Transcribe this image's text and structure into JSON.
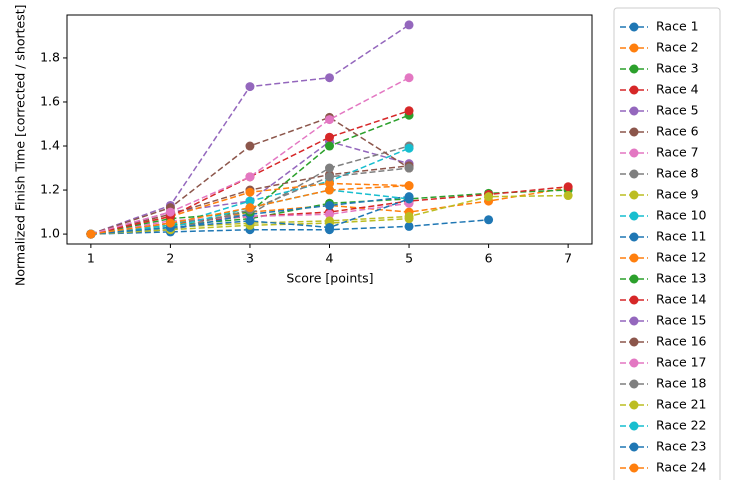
{
  "chart_data": {
    "type": "line",
    "x_label": "Score [points]",
    "y_label": "Normalized Finish Time [corrected / shortest]",
    "x": [
      1,
      2,
      3,
      4,
      5,
      6,
      7
    ],
    "xlim": [
      0.7,
      7.3
    ],
    "xticks": [
      1,
      2,
      3,
      4,
      5,
      6,
      7
    ],
    "ylim": [
      0.955,
      1.995
    ],
    "yticks": [
      {
        "value": 1,
        "label": "1.0"
      },
      1.2,
      1.4,
      1.6,
      1.8
    ],
    "line_style": "dashed",
    "marker": "circle",
    "legend": "outside-right",
    "series": [
      {
        "name": "Race 1",
        "color": "#1f77b4",
        "values": [
          1,
          1.01,
          1.02,
          1.02,
          1.035,
          1.065,
          null
        ]
      },
      {
        "name": "Race 2",
        "color": "#ff7f0e",
        "values": [
          1,
          1.04,
          1.1,
          1.13,
          1.1,
          1.15,
          1.21
        ]
      },
      {
        "name": "Race 3",
        "color": "#2ca02c",
        "values": [
          1,
          1.04,
          1.07,
          1.14,
          1.16,
          1.185,
          1.2
        ]
      },
      {
        "name": "Race 4",
        "color": "#d62728",
        "values": [
          1,
          1.05,
          1.08,
          1.1,
          1.15,
          1.18,
          1.215
        ]
      },
      {
        "name": "Race 5",
        "color": "#9467bd",
        "values": [
          1,
          1.1,
          1.15,
          1.42,
          1.32,
          null,
          null
        ]
      },
      {
        "name": "Race 6",
        "color": "#8c564b",
        "values": [
          1,
          1.09,
          1.2,
          1.27,
          1.31,
          null,
          null
        ]
      },
      {
        "name": "Race 7",
        "color": "#e377c2",
        "values": [
          1,
          1.06,
          1.08,
          1.09,
          1.14,
          null,
          null
        ]
      },
      {
        "name": "Race 8",
        "color": "#7f7f7f",
        "values": [
          1,
          1.05,
          1.09,
          1.3,
          1.4,
          null,
          null
        ]
      },
      {
        "name": "Race 9",
        "color": "#bcbd22",
        "values": [
          1,
          1.03,
          1.05,
          1.06,
          1.08,
          1.17,
          1.175
        ]
      },
      {
        "name": "Race 10",
        "color": "#17becf",
        "values": [
          1,
          1.04,
          1.15,
          1.24,
          1.39,
          null,
          null
        ]
      },
      {
        "name": "Race 11",
        "color": "#1f77b4",
        "values": [
          1,
          1.02,
          1.09,
          1.13,
          1.17,
          null,
          null
        ]
      },
      {
        "name": "Race 12",
        "color": "#ff7f0e",
        "values": [
          1,
          1.08,
          1.19,
          1.23,
          1.22,
          null,
          null
        ]
      },
      {
        "name": "Race 13",
        "color": "#2ca02c",
        "values": [
          1,
          1.07,
          1.1,
          1.4,
          1.54,
          null,
          null
        ]
      },
      {
        "name": "Race 14",
        "color": "#d62728",
        "values": [
          1,
          1.08,
          1.26,
          1.44,
          1.56,
          null,
          null
        ]
      },
      {
        "name": "Race 15",
        "color": "#9467bd",
        "values": [
          1,
          1.13,
          1.67,
          1.71,
          1.95,
          null,
          null
        ]
      },
      {
        "name": "Race 16",
        "color": "#8c564b",
        "values": [
          1,
          1.12,
          1.4,
          1.53,
          1.3,
          null,
          null
        ]
      },
      {
        "name": "Race 17",
        "color": "#e377c2",
        "values": [
          1,
          1.1,
          1.26,
          1.52,
          1.71,
          null,
          null
        ]
      },
      {
        "name": "Race 18",
        "color": "#7f7f7f",
        "values": [
          1,
          1.02,
          1.11,
          1.26,
          1.3,
          null,
          null
        ]
      },
      {
        "name": "Race 21",
        "color": "#bcbd22",
        "values": [
          1,
          1.02,
          1.04,
          1.05,
          1.07,
          null,
          null
        ]
      },
      {
        "name": "Race 22",
        "color": "#17becf",
        "values": [
          1,
          1.03,
          1.12,
          1.2,
          1.16,
          null,
          null
        ]
      },
      {
        "name": "Race 23",
        "color": "#1f77b4",
        "values": [
          1,
          1.03,
          1.06,
          1.03,
          1.16,
          null,
          null
        ]
      },
      {
        "name": "Race 24",
        "color": "#ff7f0e",
        "values": [
          1,
          1.05,
          1.12,
          1.2,
          1.22,
          null,
          null
        ]
      }
    ]
  }
}
